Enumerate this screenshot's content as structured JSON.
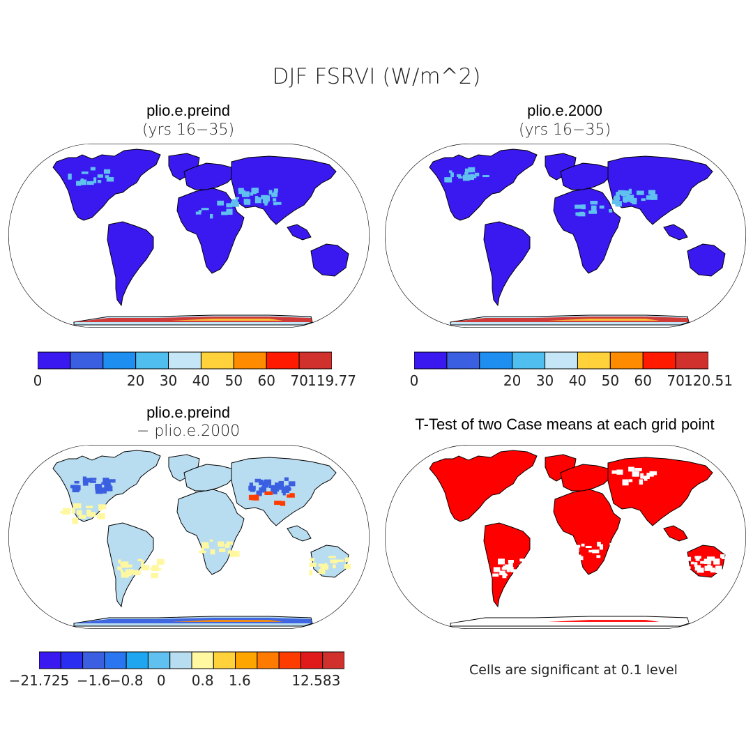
{
  "figure_title": "DJF FSRVI (W/m^2)",
  "panels": [
    {
      "title": "plio.e.preind",
      "subtitle": "(yrs 16−35)",
      "land_color": "#3a19f0",
      "ice_colors": [
        "#d0312d",
        "#ffd23c",
        "#c5e6f7"
      ],
      "colorbar": {
        "colors": [
          "#3a19f0",
          "#3a5fe0",
          "#1e8ff0",
          "#50bff0",
          "#c5e6f7",
          "#ffd23c",
          "#ff8c00",
          "#ff1a00",
          "#d0312d"
        ],
        "labels": [
          "0",
          "20",
          "30",
          "40",
          "50",
          "60",
          "70",
          "119.77"
        ]
      }
    },
    {
      "title": "plio.e.2000",
      "subtitle": "(yrs 16−35)",
      "land_color": "#3a19f0",
      "ice_colors": [
        "#d0312d",
        "#ffd23c",
        "#c5e6f7"
      ],
      "colorbar": {
        "colors": [
          "#3a19f0",
          "#3a5fe0",
          "#1e8ff0",
          "#50bff0",
          "#c5e6f7",
          "#ffd23c",
          "#ff8c00",
          "#ff1a00",
          "#d0312d"
        ],
        "labels": [
          "0",
          "20",
          "30",
          "40",
          "50",
          "60",
          "70",
          "120.51"
        ]
      }
    },
    {
      "title": "plio.e.preind",
      "subtitle": "− plio.e.2000",
      "land_color": "#b8dcf0",
      "ice_colors": [
        "#3a5fe0",
        "#ff8c00",
        "#b8dcf0"
      ],
      "colorbar": {
        "colors": [
          "#3a19f0",
          "#2a2ef0",
          "#3a5fe0",
          "#2a75f0",
          "#1ea6f0",
          "#60c0f0",
          "#b8dcf0",
          "#fff8a0",
          "#ffd23c",
          "#ffa500",
          "#ff7a00",
          "#ff3c00",
          "#e01a1a",
          "#d0312d"
        ],
        "labels": [
          "−21.725",
          "−1.6",
          "−0.8",
          "0",
          "0.8",
          "1.6",
          "12.583"
        ]
      }
    },
    {
      "title": "T-Test of two Case means at each grid point",
      "subtitle": "",
      "land_color": "#ff0000",
      "ice_colors": [
        "#ffffff",
        "#ff0000",
        "#ffffff"
      ],
      "note": "Cells are significant at 0.1 level"
    }
  ]
}
